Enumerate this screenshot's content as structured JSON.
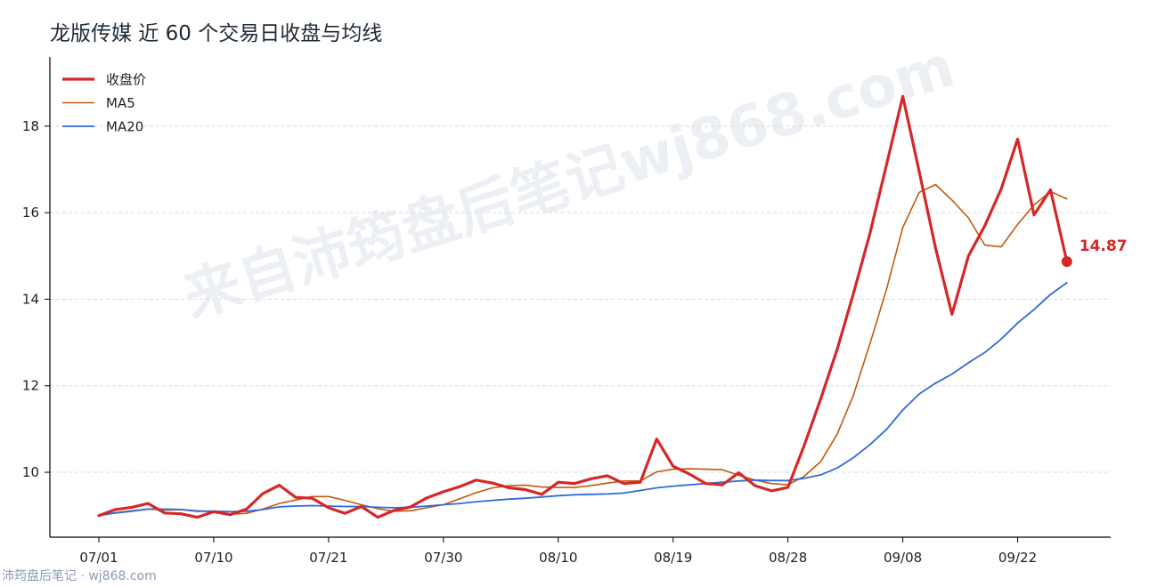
{
  "chart_data": {
    "type": "line",
    "title": "龙版传媒 近 60 个交易日收盘与均线",
    "xlabel": "",
    "ylabel": "",
    "ylim": [
      8.5,
      19.6
    ],
    "yticks": [
      10,
      12,
      14,
      16,
      18
    ],
    "x_tick_labels": [
      {
        "index": 0,
        "label": "07/01"
      },
      {
        "index": 7,
        "label": "07/10"
      },
      {
        "index": 14,
        "label": "07/21"
      },
      {
        "index": 21,
        "label": "07/30"
      },
      {
        "index": 28,
        "label": "08/10"
      },
      {
        "index": 35,
        "label": "08/19"
      },
      {
        "index": 42,
        "label": "08/28"
      },
      {
        "index": 49,
        "label": "09/08"
      },
      {
        "index": 56,
        "label": "09/22"
      }
    ],
    "grid": "horizontal-dashed",
    "legend_position": "top-left",
    "series": [
      {
        "name": "收盘价",
        "color": "#d62728",
        "values": [
          9.0,
          9.14,
          9.19,
          9.28,
          9.06,
          9.04,
          8.96,
          9.09,
          9.02,
          9.15,
          9.51,
          9.7,
          9.42,
          9.4,
          9.18,
          9.05,
          9.21,
          8.96,
          9.12,
          9.2,
          9.41,
          9.55,
          9.67,
          9.82,
          9.75,
          9.64,
          9.6,
          9.49,
          9.77,
          9.74,
          9.85,
          9.92,
          9.74,
          9.77,
          10.77,
          10.14,
          9.96,
          9.74,
          9.71,
          9.99,
          9.69,
          9.57,
          9.65,
          10.63,
          11.7,
          12.84,
          14.14,
          15.52,
          17.1,
          18.69,
          16.95,
          15.18,
          13.65,
          15.0,
          15.7,
          16.55,
          17.7,
          15.95,
          16.53,
          14.87
        ]
      },
      {
        "name": "MA5",
        "color": "#c05a0c",
        "values": [
          9.0,
          9.07,
          9.11,
          9.15,
          9.13,
          9.14,
          9.11,
          9.09,
          9.03,
          9.05,
          9.15,
          9.28,
          9.36,
          9.44,
          9.44,
          9.35,
          9.25,
          9.16,
          9.1,
          9.11,
          9.18,
          9.25,
          9.39,
          9.53,
          9.64,
          9.69,
          9.7,
          9.66,
          9.65,
          9.65,
          9.69,
          9.75,
          9.8,
          9.8,
          10.01,
          10.07,
          10.08,
          10.07,
          10.06,
          9.93,
          9.82,
          9.74,
          9.71,
          9.91,
          10.25,
          10.88,
          11.79,
          12.97,
          14.22,
          15.66,
          16.47,
          16.65,
          16.29,
          15.88,
          15.25,
          15.21,
          15.73,
          16.18,
          16.49,
          16.32
        ]
      },
      {
        "name": "MA20",
        "color": "#2f6ad9",
        "values": [
          9.0,
          9.06,
          9.1,
          9.15,
          9.15,
          9.14,
          9.1,
          9.1,
          9.09,
          9.1,
          9.14,
          9.2,
          9.22,
          9.23,
          9.22,
          9.21,
          9.21,
          9.19,
          9.18,
          9.19,
          9.22,
          9.25,
          9.28,
          9.32,
          9.35,
          9.38,
          9.4,
          9.43,
          9.46,
          9.48,
          9.49,
          9.5,
          9.52,
          9.58,
          9.64,
          9.68,
          9.71,
          9.74,
          9.77,
          9.8,
          9.82,
          9.81,
          9.81,
          9.86,
          9.94,
          10.1,
          10.34,
          10.64,
          10.99,
          11.44,
          11.81,
          12.06,
          12.27,
          12.53,
          12.77,
          13.08,
          13.45,
          13.76,
          14.11,
          14.38
        ]
      }
    ],
    "annotations": [
      {
        "series": "收盘价",
        "index": 59,
        "value": 14.87,
        "text": "14.87",
        "color": "#d62728"
      }
    ]
  },
  "watermark": "来自沛筠盘后笔记wj868.com",
  "footer": "沛筠盘后笔记 · wj868.com"
}
